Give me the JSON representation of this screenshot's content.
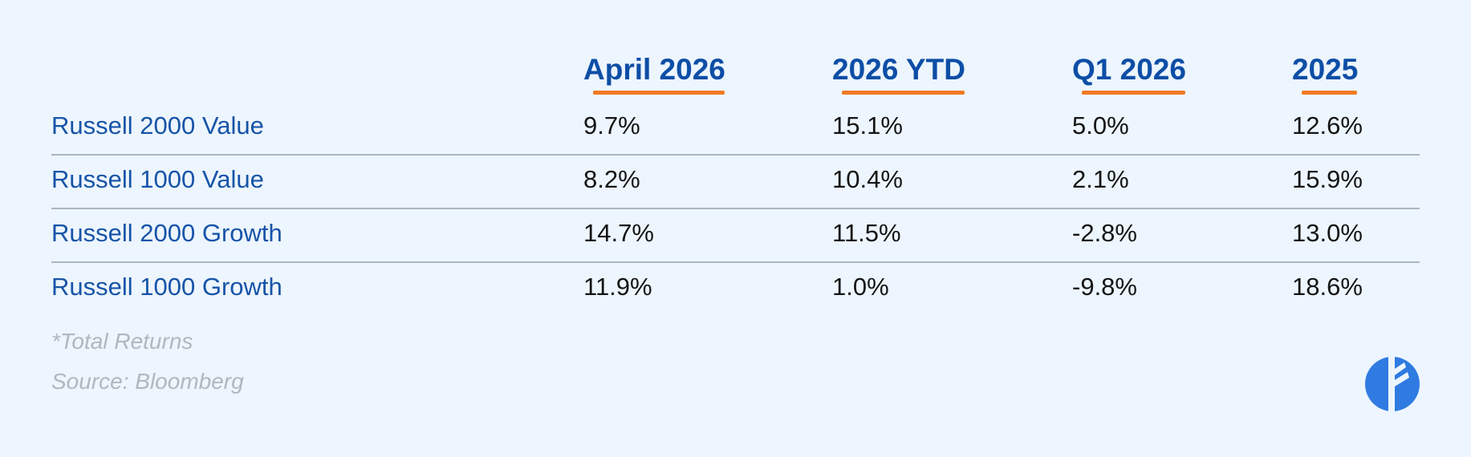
{
  "header": {
    "columns": [
      "April 2026",
      "2026 YTD",
      "Q1 2026",
      "2025"
    ]
  },
  "table": {
    "rows": [
      {
        "label": "Russell 2000 Value",
        "values": [
          "9.7%",
          "15.1%",
          "5.0%",
          "12.6%"
        ]
      },
      {
        "label": "Russell 1000 Value",
        "values": [
          "8.2%",
          "10.4%",
          "2.1%",
          "15.9%"
        ]
      },
      {
        "label": "Russell 2000 Growth",
        "values": [
          "14.7%",
          "11.5%",
          "-2.8%",
          "13.0%"
        ]
      },
      {
        "label": "Russell 1000 Growth",
        "values": [
          "11.9%",
          "1.0%",
          "-9.8%",
          "18.6%"
        ]
      }
    ]
  },
  "notes": [
    "*Total Returns",
    "Source: Bloomberg"
  ]
}
